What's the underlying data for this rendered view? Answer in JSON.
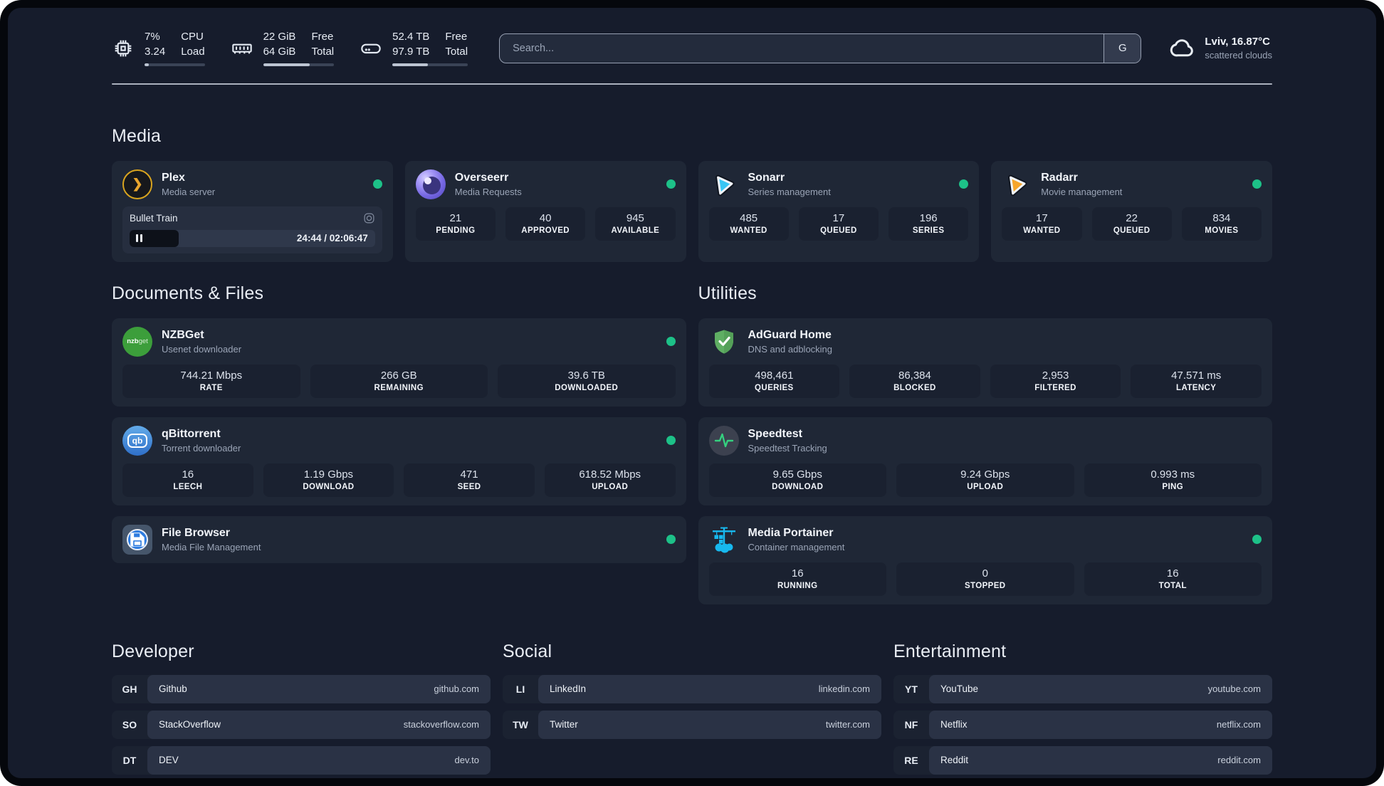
{
  "colors": {
    "status_online": "#1dc188",
    "accent_plex": "#e9a52e",
    "accent_sonarr": "#38c6f4",
    "accent_radarr": "#f6a52a",
    "accent_portainer": "#17b8ee",
    "accent_speedtest": "#35d07f"
  },
  "icons": {
    "plex_glyph": "❯",
    "nzbget_bold": "nzb",
    "nzbget_light": "get",
    "qb_text": "qb"
  },
  "header": {
    "stats": [
      {
        "icon": "cpu-icon",
        "value_top": "7%",
        "value_bottom": "3.24",
        "label_top": "CPU",
        "label_bottom": "Load",
        "progress": 7
      },
      {
        "icon": "ram-icon",
        "value_top": "22 GiB",
        "value_bottom": "64 GiB",
        "label_top": "Free",
        "label_bottom": "Total",
        "progress": 66
      },
      {
        "icon": "disk-icon",
        "value_top": "52.4 TB",
        "value_bottom": "97.9 TB",
        "label_top": "Free",
        "label_bottom": "Total",
        "progress": 47
      }
    ],
    "search": {
      "placeholder": "Search...",
      "button_label": "G"
    },
    "weather": {
      "location_temp": "Lviv, 16.87°C",
      "condition": "scattered clouds"
    }
  },
  "sections": {
    "media": {
      "title": "Media",
      "cards": [
        {
          "name": "Plex",
          "desc": "Media server",
          "online": true,
          "media": {
            "title": "Bullet Train",
            "time": "24:44 / 02:06:47",
            "progress_pct": 20
          }
        },
        {
          "name": "Overseerr",
          "desc": "Media Requests",
          "online": true,
          "stats": [
            {
              "value": "21",
              "label": "PENDING"
            },
            {
              "value": "40",
              "label": "APPROVED"
            },
            {
              "value": "945",
              "label": "AVAILABLE"
            }
          ]
        },
        {
          "name": "Sonarr",
          "desc": "Series management",
          "online": true,
          "stats": [
            {
              "value": "485",
              "label": "WANTED"
            },
            {
              "value": "17",
              "label": "QUEUED"
            },
            {
              "value": "196",
              "label": "SERIES"
            }
          ]
        },
        {
          "name": "Radarr",
          "desc": "Movie management",
          "online": true,
          "stats": [
            {
              "value": "17",
              "label": "WANTED"
            },
            {
              "value": "22",
              "label": "QUEUED"
            },
            {
              "value": "834",
              "label": "MOVIES"
            }
          ]
        }
      ]
    },
    "documents": {
      "title": "Documents & Files",
      "cards": [
        {
          "name": "NZBGet",
          "desc": "Usenet downloader",
          "online": true,
          "stats": [
            {
              "value": "744.21 Mbps",
              "label": "RATE"
            },
            {
              "value": "266 GB",
              "label": "REMAINING"
            },
            {
              "value": "39.6 TB",
              "label": "DOWNLOADED"
            }
          ]
        },
        {
          "name": "qBittorrent",
          "desc": "Torrent downloader",
          "online": true,
          "stats": [
            {
              "value": "16",
              "label": "LEECH"
            },
            {
              "value": "1.19 Gbps",
              "label": "DOWNLOAD"
            },
            {
              "value": "471",
              "label": "SEED"
            },
            {
              "value": "618.52 Mbps",
              "label": "UPLOAD"
            }
          ]
        },
        {
          "name": "File Browser",
          "desc": "Media File Management",
          "online": true
        }
      ]
    },
    "utilities": {
      "title": "Utilities",
      "cards": [
        {
          "name": "AdGuard Home",
          "desc": "DNS and adblocking",
          "online": false,
          "stats": [
            {
              "value": "498,461",
              "label": "QUERIES"
            },
            {
              "value": "86,384",
              "label": "BLOCKED"
            },
            {
              "value": "2,953",
              "label": "FILTERED"
            },
            {
              "value": "47.571 ms",
              "label": "LATENCY"
            }
          ]
        },
        {
          "name": "Speedtest",
          "desc": "Speedtest Tracking",
          "online": false,
          "stats": [
            {
              "value": "9.65 Gbps",
              "label": "DOWNLOAD"
            },
            {
              "value": "9.24 Gbps",
              "label": "UPLOAD"
            },
            {
              "value": "0.993 ms",
              "label": "PING"
            }
          ]
        },
        {
          "name": "Media Portainer",
          "desc": "Container management",
          "online": true,
          "stats": [
            {
              "value": "16",
              "label": "RUNNING"
            },
            {
              "value": "0",
              "label": "STOPPED"
            },
            {
              "value": "16",
              "label": "TOTAL"
            }
          ]
        }
      ]
    },
    "developer": {
      "title": "Developer",
      "items": [
        {
          "abbr": "GH",
          "name": "Github",
          "domain": "github.com"
        },
        {
          "abbr": "SO",
          "name": "StackOverflow",
          "domain": "stackoverflow.com"
        },
        {
          "abbr": "DT",
          "name": "DEV",
          "domain": "dev.to"
        }
      ]
    },
    "social": {
      "title": "Social",
      "items": [
        {
          "abbr": "LI",
          "name": "LinkedIn",
          "domain": "linkedin.com"
        },
        {
          "abbr": "TW",
          "name": "Twitter",
          "domain": "twitter.com"
        }
      ]
    },
    "entertainment": {
      "title": "Entertainment",
      "items": [
        {
          "abbr": "YT",
          "name": "YouTube",
          "domain": "youtube.com"
        },
        {
          "abbr": "NF",
          "name": "Netflix",
          "domain": "netflix.com"
        },
        {
          "abbr": "RE",
          "name": "Reddit",
          "domain": "reddit.com"
        }
      ]
    }
  }
}
